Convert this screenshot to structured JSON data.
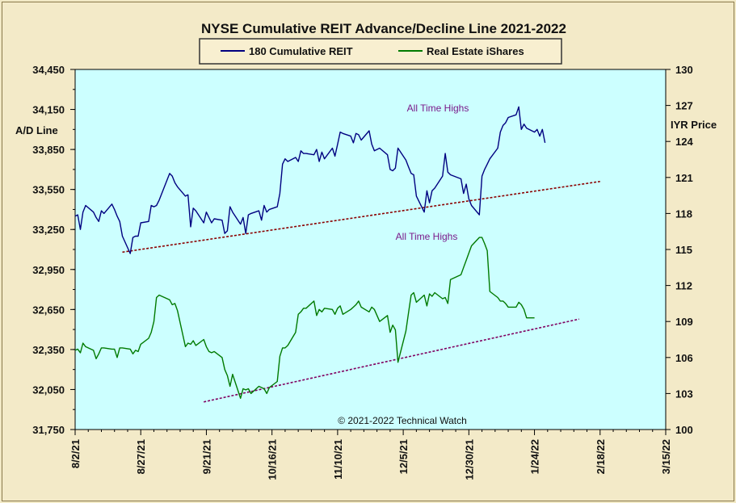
{
  "chart_data": {
    "type": "line",
    "title": "NYSE Cumulative  REIT Advance/Decline  Line 2021-2022",
    "y_left_label": "A/D Line",
    "y_right_label": "IYR Price",
    "y_left_range": [
      31750,
      34450
    ],
    "y_left_ticks": [
      "34,450",
      "34,150",
      "33,850",
      "33,550",
      "33,250",
      "32,950",
      "32,650",
      "32,350",
      "32,050",
      "31,750"
    ],
    "y_right_range": [
      100,
      130
    ],
    "y_right_ticks": [
      "130",
      "127",
      "124",
      "121",
      "118",
      "115",
      "112",
      "109",
      "106",
      "103",
      "100"
    ],
    "x_ticks": [
      "8/2/21",
      "8/27/21",
      "9/21/21",
      "10/16/21",
      "11/10/21",
      "12/5/21",
      "12/30/21",
      "1/24/22",
      "2/18/22",
      "3/15/22"
    ],
    "x_start": "2021-08-02",
    "x_end": "2022-03-15",
    "annotations": [
      "All Time Highs",
      "All Time Highs"
    ],
    "copyright": "© 2021-2022  Technical  Watch",
    "grid": false,
    "legend_position": "top",
    "series": [
      {
        "name": "180 Cumulative REIT",
        "axis": "left",
        "color": "#000080",
        "points": [
          [
            "2021-08-02",
            33350
          ],
          [
            "2021-08-03",
            33360
          ],
          [
            "2021-08-04",
            33250
          ],
          [
            "2021-08-05",
            33380
          ],
          [
            "2021-08-06",
            33430
          ],
          [
            "2021-08-09",
            33380
          ],
          [
            "2021-08-10",
            33340
          ],
          [
            "2021-08-11",
            33310
          ],
          [
            "2021-08-12",
            33390
          ],
          [
            "2021-08-13",
            33370
          ],
          [
            "2021-08-16",
            33440
          ],
          [
            "2021-08-17",
            33400
          ],
          [
            "2021-08-18",
            33350
          ],
          [
            "2021-08-19",
            33310
          ],
          [
            "2021-08-20",
            33200
          ],
          [
            "2021-08-23",
            33070
          ],
          [
            "2021-08-24",
            33190
          ],
          [
            "2021-08-25",
            33200
          ],
          [
            "2021-08-26",
            33200
          ],
          [
            "2021-08-27",
            33300
          ],
          [
            "2021-08-30",
            33310
          ],
          [
            "2021-08-31",
            33430
          ],
          [
            "2021-09-01",
            33420
          ],
          [
            "2021-09-02",
            33430
          ],
          [
            "2021-09-03",
            33470
          ],
          [
            "2021-09-07",
            33670
          ],
          [
            "2021-09-08",
            33650
          ],
          [
            "2021-09-09",
            33600
          ],
          [
            "2021-09-10",
            33570
          ],
          [
            "2021-09-13",
            33500
          ],
          [
            "2021-09-14",
            33510
          ],
          [
            "2021-09-15",
            33270
          ],
          [
            "2021-09-16",
            33410
          ],
          [
            "2021-09-17",
            33390
          ],
          [
            "2021-09-20",
            33300
          ],
          [
            "2021-09-21",
            33380
          ],
          [
            "2021-09-22",
            33340
          ],
          [
            "2021-09-23",
            33300
          ],
          [
            "2021-09-24",
            33330
          ],
          [
            "2021-09-27",
            33320
          ],
          [
            "2021-09-28",
            33220
          ],
          [
            "2021-09-29",
            33240
          ],
          [
            "2021-09-30",
            33420
          ],
          [
            "2021-10-01",
            33380
          ],
          [
            "2021-10-04",
            33290
          ],
          [
            "2021-10-05",
            33340
          ],
          [
            "2021-10-06",
            33220
          ],
          [
            "2021-10-07",
            33360
          ],
          [
            "2021-10-08",
            33370
          ],
          [
            "2021-10-11",
            33390
          ],
          [
            "2021-10-12",
            33320
          ],
          [
            "2021-10-13",
            33430
          ],
          [
            "2021-10-14",
            33380
          ],
          [
            "2021-10-15",
            33400
          ],
          [
            "2021-10-18",
            33420
          ],
          [
            "2021-10-19",
            33520
          ],
          [
            "2021-10-20",
            33740
          ],
          [
            "2021-10-21",
            33780
          ],
          [
            "2021-10-22",
            33760
          ],
          [
            "2021-10-25",
            33790
          ],
          [
            "2021-10-26",
            33760
          ],
          [
            "2021-10-27",
            33840
          ],
          [
            "2021-10-28",
            33820
          ],
          [
            "2021-10-29",
            33820
          ],
          [
            "2021-11-01",
            33810
          ],
          [
            "2021-11-02",
            33850
          ],
          [
            "2021-11-03",
            33760
          ],
          [
            "2021-11-04",
            33830
          ],
          [
            "2021-11-05",
            33780
          ],
          [
            "2021-11-08",
            33860
          ],
          [
            "2021-11-09",
            33800
          ],
          [
            "2021-11-10",
            33890
          ],
          [
            "2021-11-11",
            33980
          ],
          [
            "2021-11-12",
            33970
          ],
          [
            "2021-11-15",
            33950
          ],
          [
            "2021-11-16",
            33900
          ],
          [
            "2021-11-17",
            33970
          ],
          [
            "2021-11-18",
            33960
          ],
          [
            "2021-11-19",
            33920
          ],
          [
            "2021-11-22",
            33990
          ],
          [
            "2021-11-23",
            33890
          ],
          [
            "2021-11-24",
            33840
          ],
          [
            "2021-11-26",
            33860
          ],
          [
            "2021-11-29",
            33810
          ],
          [
            "2021-11-30",
            33700
          ],
          [
            "2021-12-01",
            33690
          ],
          [
            "2021-12-02",
            33710
          ],
          [
            "2021-12-03",
            33860
          ],
          [
            "2021-12-06",
            33770
          ],
          [
            "2021-12-07",
            33720
          ],
          [
            "2021-12-08",
            33670
          ],
          [
            "2021-12-09",
            33660
          ],
          [
            "2021-12-10",
            33500
          ],
          [
            "2021-12-13",
            33380
          ],
          [
            "2021-12-14",
            33540
          ],
          [
            "2021-12-15",
            33450
          ],
          [
            "2021-12-16",
            33540
          ],
          [
            "2021-12-17",
            33560
          ],
          [
            "2021-12-20",
            33650
          ],
          [
            "2021-12-21",
            33820
          ],
          [
            "2021-12-22",
            33680
          ],
          [
            "2021-12-23",
            33660
          ],
          [
            "2021-12-27",
            33630
          ],
          [
            "2021-12-28",
            33520
          ],
          [
            "2021-12-29",
            33590
          ],
          [
            "2021-12-30",
            33480
          ],
          [
            "2021-12-31",
            33430
          ],
          [
            "2022-01-03",
            33360
          ],
          [
            "2022-01-04",
            33650
          ],
          [
            "2022-01-05",
            33700
          ],
          [
            "2022-01-06",
            33740
          ],
          [
            "2022-01-07",
            33780
          ],
          [
            "2022-01-10",
            33860
          ],
          [
            "2022-01-11",
            33980
          ],
          [
            "2022-01-12",
            34030
          ],
          [
            "2022-01-13",
            34050
          ],
          [
            "2022-01-14",
            34090
          ],
          [
            "2022-01-17",
            34110
          ],
          [
            "2022-01-18",
            34170
          ],
          [
            "2022-01-19",
            34000
          ],
          [
            "2022-01-20",
            34040
          ],
          [
            "2022-01-21",
            34010
          ],
          [
            "2022-01-24",
            33980
          ],
          [
            "2022-01-25",
            34000
          ],
          [
            "2022-01-26",
            33950
          ],
          [
            "2022-01-27",
            34000
          ],
          [
            "2022-01-28",
            33900
          ]
        ]
      },
      {
        "name": "Real Estate iShares",
        "axis": "right",
        "color": "#007a00",
        "points": [
          [
            "2021-08-02",
            106.6
          ],
          [
            "2021-08-03",
            106.7
          ],
          [
            "2021-08-04",
            106.4
          ],
          [
            "2021-08-05",
            107.2
          ],
          [
            "2021-08-06",
            106.9
          ],
          [
            "2021-08-09",
            106.6
          ],
          [
            "2021-08-10",
            105.9
          ],
          [
            "2021-08-11",
            106.3
          ],
          [
            "2021-08-12",
            106.8
          ],
          [
            "2021-08-13",
            106.8
          ],
          [
            "2021-08-16",
            106.7
          ],
          [
            "2021-08-17",
            106.7
          ],
          [
            "2021-08-18",
            106.0
          ],
          [
            "2021-08-19",
            106.8
          ],
          [
            "2021-08-20",
            106.8
          ],
          [
            "2021-08-23",
            106.7
          ],
          [
            "2021-08-24",
            106.3
          ],
          [
            "2021-08-25",
            106.6
          ],
          [
            "2021-08-26",
            106.5
          ],
          [
            "2021-08-27",
            107.1
          ],
          [
            "2021-08-30",
            107.6
          ],
          [
            "2021-08-31",
            108.1
          ],
          [
            "2021-09-01",
            109.0
          ],
          [
            "2021-09-02",
            111.0
          ],
          [
            "2021-09-03",
            111.2
          ],
          [
            "2021-09-07",
            110.8
          ],
          [
            "2021-09-08",
            110.4
          ],
          [
            "2021-09-09",
            110.5
          ],
          [
            "2021-09-10",
            109.9
          ],
          [
            "2021-09-13",
            106.9
          ],
          [
            "2021-09-14",
            107.2
          ],
          [
            "2021-09-15",
            107.1
          ],
          [
            "2021-09-16",
            107.4
          ],
          [
            "2021-09-17",
            107.0
          ],
          [
            "2021-09-20",
            107.5
          ],
          [
            "2021-09-21",
            106.9
          ],
          [
            "2021-09-22",
            106.5
          ],
          [
            "2021-09-23",
            106.4
          ],
          [
            "2021-09-24",
            106.5
          ],
          [
            "2021-09-27",
            106.0
          ],
          [
            "2021-09-28",
            105.0
          ],
          [
            "2021-09-29",
            104.5
          ],
          [
            "2021-09-30",
            103.6
          ],
          [
            "2021-10-01",
            104.6
          ],
          [
            "2021-10-04",
            102.6
          ],
          [
            "2021-10-05",
            103.4
          ],
          [
            "2021-10-06",
            103.3
          ],
          [
            "2021-10-07",
            103.4
          ],
          [
            "2021-10-08",
            103.0
          ],
          [
            "2021-10-11",
            103.6
          ],
          [
            "2021-10-12",
            103.5
          ],
          [
            "2021-10-13",
            103.4
          ],
          [
            "2021-10-14",
            103.0
          ],
          [
            "2021-10-15",
            103.5
          ],
          [
            "2021-10-18",
            104.0
          ],
          [
            "2021-10-19",
            106.1
          ],
          [
            "2021-10-20",
            106.8
          ],
          [
            "2021-10-21",
            106.8
          ],
          [
            "2021-10-22",
            107.0
          ],
          [
            "2021-10-25",
            108.1
          ],
          [
            "2021-10-26",
            109.6
          ],
          [
            "2021-10-27",
            109.8
          ],
          [
            "2021-10-28",
            110.1
          ],
          [
            "2021-10-29",
            110.1
          ],
          [
            "2021-11-01",
            110.7
          ],
          [
            "2021-11-02",
            109.5
          ],
          [
            "2021-11-03",
            110.0
          ],
          [
            "2021-11-04",
            109.8
          ],
          [
            "2021-11-05",
            110.1
          ],
          [
            "2021-11-08",
            110.0
          ],
          [
            "2021-11-09",
            109.6
          ],
          [
            "2021-11-10",
            110.1
          ],
          [
            "2021-11-11",
            110.3
          ],
          [
            "2021-11-12",
            109.6
          ],
          [
            "2021-11-15",
            110.0
          ],
          [
            "2021-11-16",
            110.2
          ],
          [
            "2021-11-17",
            110.4
          ],
          [
            "2021-11-18",
            110.7
          ],
          [
            "2021-11-19",
            110.2
          ],
          [
            "2021-11-22",
            109.8
          ],
          [
            "2021-11-23",
            110.2
          ],
          [
            "2021-11-24",
            110.0
          ],
          [
            "2021-11-26",
            109.0
          ],
          [
            "2021-11-29",
            109.5
          ],
          [
            "2021-11-30",
            108.1
          ],
          [
            "2021-12-01",
            108.7
          ],
          [
            "2021-12-02",
            108.3
          ],
          [
            "2021-12-03",
            105.6
          ],
          [
            "2021-12-06",
            108.2
          ],
          [
            "2021-12-07",
            109.7
          ],
          [
            "2021-12-08",
            111.2
          ],
          [
            "2021-12-09",
            111.4
          ],
          [
            "2021-12-10",
            110.6
          ],
          [
            "2021-12-13",
            111.2
          ],
          [
            "2021-12-14",
            110.3
          ],
          [
            "2021-12-15",
            111.3
          ],
          [
            "2021-12-16",
            111.1
          ],
          [
            "2021-12-17",
            111.4
          ],
          [
            "2021-12-20",
            110.9
          ],
          [
            "2021-12-21",
            111.0
          ],
          [
            "2021-12-22",
            110.5
          ],
          [
            "2021-12-23",
            112.5
          ],
          [
            "2021-12-27",
            112.9
          ],
          [
            "2021-12-28",
            113.5
          ],
          [
            "2021-12-29",
            114.1
          ],
          [
            "2021-12-30",
            114.7
          ],
          [
            "2021-12-31",
            115.3
          ],
          [
            "2022-01-03",
            116.0
          ],
          [
            "2022-01-04",
            116.0
          ],
          [
            "2022-01-05",
            115.5
          ],
          [
            "2022-01-06",
            114.9
          ],
          [
            "2022-01-07",
            111.5
          ],
          [
            "2022-01-10",
            111.0
          ],
          [
            "2022-01-11",
            110.7
          ],
          [
            "2022-01-12",
            110.7
          ],
          [
            "2022-01-13",
            110.5
          ],
          [
            "2022-01-14",
            110.2
          ],
          [
            "2022-01-17",
            110.2
          ],
          [
            "2022-01-18",
            110.6
          ],
          [
            "2022-01-19",
            110.4
          ],
          [
            "2022-01-20",
            110.0
          ],
          [
            "2022-01-21",
            109.3
          ],
          [
            "2022-01-24",
            109.3
          ]
        ]
      }
    ],
    "trendlines": [
      {
        "axis": "left",
        "points": [
          [
            "2021-08-20",
            33080
          ],
          [
            "2022-02-18",
            33610
          ]
        ],
        "color": "#8b0000",
        "style": "dashed"
      },
      {
        "axis": "right",
        "points": [
          [
            "2021-09-20",
            102.3
          ],
          [
            "2022-02-10",
            109.2
          ]
        ],
        "color": "#800060",
        "style": "dashed"
      }
    ]
  }
}
